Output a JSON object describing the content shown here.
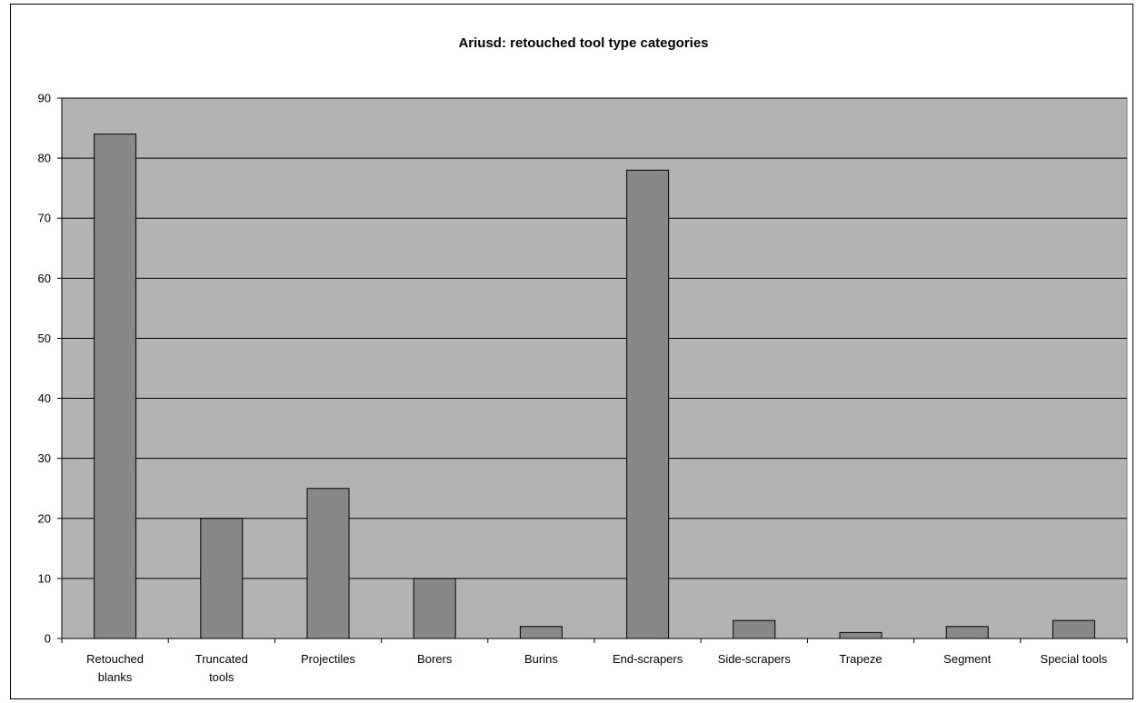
{
  "chart_data": {
    "type": "bar",
    "title": "Ariusd: retouched tool type categories",
    "categories": [
      [
        "Retouched",
        "blanks"
      ],
      [
        "Truncated",
        "tools"
      ],
      [
        "Projectiles"
      ],
      [
        "Borers"
      ],
      [
        "Burins"
      ],
      [
        "End-scrapers"
      ],
      [
        "Side-scrapers"
      ],
      [
        "Trapeze"
      ],
      [
        "Segment"
      ],
      [
        "Special tools"
      ]
    ],
    "values": [
      84,
      20,
      25,
      10,
      2,
      78,
      3,
      1,
      2,
      3
    ],
    "ylim": [
      0,
      90
    ],
    "yticks": [
      0,
      10,
      20,
      30,
      40,
      50,
      60,
      70,
      80,
      90
    ],
    "grid": true,
    "legend": "none",
    "colors": {
      "plot_background": "#b3b3b3",
      "bar_fill": "#888888",
      "bar_stroke": "#000000",
      "gridline": "#000000"
    }
  }
}
